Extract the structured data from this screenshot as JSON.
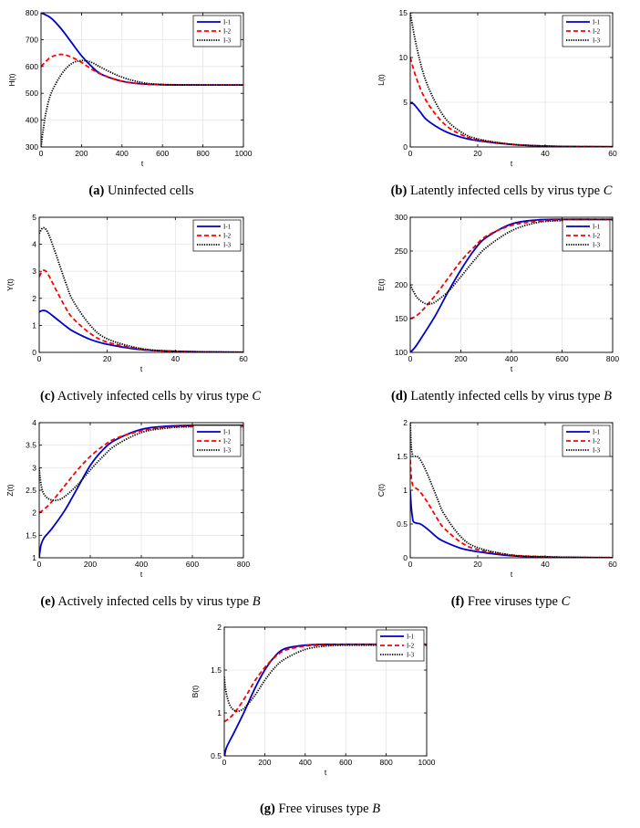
{
  "legend_labels": [
    "I-1",
    "I-2",
    "I-3"
  ],
  "colors": {
    "I-1": "#0000cc",
    "I-2": "#ff0000",
    "I-3": "#000000",
    "grid": "#e6e6e6"
  },
  "captions": {
    "a": {
      "tag": "(a)",
      "text": "Uninfected cells",
      "var": ""
    },
    "b": {
      "tag": "(b)",
      "text": "Latently infected cells by virus type",
      "var": "C"
    },
    "c": {
      "tag": "(c)",
      "text": "Actively infected cells by virus type",
      "var": "C"
    },
    "d": {
      "tag": "(d)",
      "text": "Latently infected cells by virus type",
      "var": "B"
    },
    "e": {
      "tag": "(e)",
      "text": "Actively infected cells by virus type",
      "var": "B"
    },
    "f": {
      "tag": "(f)",
      "text": "Free viruses type",
      "var": "C"
    },
    "g": {
      "tag": "(g)",
      "text": "Free viruses type",
      "var": "B"
    }
  },
  "chart_data": [
    {
      "id": "a",
      "type": "line",
      "xlabel": "t",
      "ylabel": "H(t)",
      "xlim": [
        0,
        1000
      ],
      "ylim": [
        300,
        800
      ],
      "xticks": [
        0,
        200,
        400,
        600,
        800,
        1000
      ],
      "xtick_labels": [
        "0",
        "200",
        "400",
        "600",
        "800",
        "1000"
      ],
      "yticks": [
        300,
        400,
        500,
        600,
        700,
        800
      ],
      "ytick_labels": [
        "300",
        "400",
        "500",
        "600",
        "700",
        "800"
      ],
      "legend": "top-right",
      "series": [
        {
          "name": "I-1",
          "x": [
            0,
            50,
            100,
            150,
            200,
            250,
            300,
            400,
            500,
            600,
            700,
            800,
            1000
          ],
          "y": [
            800,
            780,
            740,
            690,
            640,
            600,
            570,
            545,
            535,
            532,
            531,
            531,
            531
          ]
        },
        {
          "name": "I-2",
          "x": [
            0,
            20,
            50,
            100,
            150,
            200,
            250,
            300,
            400,
            500,
            600,
            800,
            1000
          ],
          "y": [
            600,
            615,
            635,
            645,
            635,
            615,
            590,
            570,
            545,
            535,
            532,
            531,
            531
          ]
        },
        {
          "name": "I-3",
          "x": [
            0,
            10,
            25,
            50,
            100,
            150,
            200,
            250,
            300,
            400,
            500,
            600,
            800,
            1000
          ],
          "y": [
            300,
            360,
            430,
            500,
            570,
            610,
            622,
            615,
            595,
            560,
            540,
            533,
            531,
            531
          ]
        }
      ]
    },
    {
      "id": "b",
      "type": "line",
      "xlabel": "t",
      "ylabel": "L(t)",
      "xlim": [
        0,
        60
      ],
      "ylim": [
        0,
        15
      ],
      "xticks": [
        0,
        20,
        40,
        60
      ],
      "xtick_labels": [
        "0",
        "20",
        "40",
        "60"
      ],
      "yticks": [
        0,
        5,
        10,
        15
      ],
      "ytick_labels": [
        "0",
        "5",
        "10",
        "15"
      ],
      "legend": "top-right",
      "series": [
        {
          "name": "I-1",
          "x": [
            0,
            1,
            3,
            5,
            10,
            15,
            20,
            30,
            40,
            50,
            60
          ],
          "y": [
            4.9,
            4.8,
            3.9,
            3.0,
            1.8,
            1.1,
            0.7,
            0.28,
            0.1,
            0.04,
            0.02
          ]
        },
        {
          "name": "I-2",
          "x": [
            0,
            2,
            5,
            10,
            15,
            20,
            30,
            40,
            50,
            60
          ],
          "y": [
            10,
            7.5,
            5.0,
            2.6,
            1.4,
            0.8,
            0.3,
            0.1,
            0.04,
            0.02
          ]
        },
        {
          "name": "I-3",
          "x": [
            0,
            2,
            5,
            10,
            15,
            20,
            30,
            40,
            50,
            60
          ],
          "y": [
            15,
            11,
            7.0,
            3.4,
            1.7,
            0.9,
            0.3,
            0.1,
            0.04,
            0.02
          ]
        }
      ]
    },
    {
      "id": "c",
      "type": "line",
      "xlabel": "t",
      "ylabel": "Y(t)",
      "xlim": [
        0,
        60
      ],
      "ylim": [
        0,
        5
      ],
      "xticks": [
        0,
        20,
        40,
        60
      ],
      "xtick_labels": [
        "0",
        "20",
        "40",
        "60"
      ],
      "yticks": [
        0,
        1,
        2,
        3,
        4,
        5
      ],
      "ytick_labels": [
        "0",
        "1",
        "2",
        "3",
        "4",
        "5"
      ],
      "legend": "top-right",
      "series": [
        {
          "name": "I-1",
          "x": [
            0,
            1,
            2,
            3,
            5,
            8,
            10,
            15,
            20,
            30,
            40,
            50,
            60
          ],
          "y": [
            1.5,
            1.55,
            1.53,
            1.45,
            1.25,
            0.95,
            0.78,
            0.48,
            0.3,
            0.1,
            0.04,
            0.015,
            0.005
          ]
        },
        {
          "name": "I-2",
          "x": [
            0,
            1,
            2,
            3,
            5,
            8,
            10,
            15,
            20,
            30,
            40,
            50,
            60
          ],
          "y": [
            2.8,
            3.02,
            3.0,
            2.8,
            2.3,
            1.6,
            1.25,
            0.7,
            0.38,
            0.12,
            0.04,
            0.015,
            0.005
          ]
        },
        {
          "name": "I-3",
          "x": [
            0,
            1,
            2,
            3,
            5,
            8,
            10,
            15,
            20,
            30,
            40,
            50,
            60
          ],
          "y": [
            4.4,
            4.6,
            4.55,
            4.3,
            3.6,
            2.5,
            1.9,
            1.0,
            0.5,
            0.14,
            0.04,
            0.015,
            0.005
          ]
        }
      ]
    },
    {
      "id": "d",
      "type": "line",
      "xlabel": "t",
      "ylabel": "E(t)",
      "xlim": [
        0,
        800
      ],
      "ylim": [
        100,
        300
      ],
      "xticks": [
        0,
        200,
        400,
        600,
        800
      ],
      "xtick_labels": [
        "0",
        "200",
        "400",
        "600",
        "800"
      ],
      "yticks": [
        100,
        150,
        200,
        250,
        300
      ],
      "ytick_labels": [
        "100",
        "150",
        "200",
        "250",
        "300"
      ],
      "legend": "top-right",
      "series": [
        {
          "name": "I-1",
          "x": [
            0,
            20,
            50,
            100,
            150,
            200,
            250,
            300,
            400,
            500,
            600,
            800
          ],
          "y": [
            100,
            108,
            125,
            155,
            190,
            222,
            250,
            270,
            290,
            296,
            297,
            297
          ]
        },
        {
          "name": "I-2",
          "x": [
            0,
            20,
            50,
            100,
            150,
            200,
            250,
            300,
            400,
            500,
            600,
            800
          ],
          "y": [
            150,
            153,
            163,
            185,
            210,
            235,
            255,
            272,
            288,
            294,
            296,
            297
          ]
        },
        {
          "name": "I-3",
          "x": [
            0,
            10,
            30,
            60,
            80,
            100,
            150,
            200,
            250,
            300,
            400,
            500,
            600,
            800
          ],
          "y": [
            200,
            192,
            180,
            172,
            172,
            175,
            190,
            212,
            235,
            255,
            280,
            292,
            295,
            296
          ]
        }
      ]
    },
    {
      "id": "e",
      "type": "line",
      "xlabel": "t",
      "ylabel": "Z(t)",
      "xlim": [
        0,
        800
      ],
      "ylim": [
        1,
        4
      ],
      "xticks": [
        0,
        200,
        400,
        600,
        800
      ],
      "xtick_labels": [
        "0",
        "200",
        "400",
        "600",
        "800"
      ],
      "yticks": [
        1,
        1.5,
        2,
        2.5,
        3,
        3.5,
        4
      ],
      "ytick_labels": [
        "1",
        "1.5",
        "2",
        "2.5",
        "3",
        "3.5",
        "4"
      ],
      "legend": "top-right",
      "series": [
        {
          "name": "I-1",
          "x": [
            0,
            3,
            8,
            20,
            50,
            100,
            150,
            200,
            250,
            300,
            400,
            500,
            600,
            800
          ],
          "y": [
            1,
            1.15,
            1.3,
            1.45,
            1.65,
            2.05,
            2.55,
            3.05,
            3.4,
            3.62,
            3.85,
            3.92,
            3.94,
            3.94
          ]
        },
        {
          "name": "I-2",
          "x": [
            0,
            20,
            50,
            100,
            150,
            200,
            250,
            300,
            400,
            500,
            600,
            800
          ],
          "y": [
            2,
            2.08,
            2.25,
            2.6,
            2.95,
            3.25,
            3.48,
            3.65,
            3.82,
            3.9,
            3.92,
            3.93
          ]
        },
        {
          "name": "I-3",
          "x": [
            0,
            3,
            10,
            20,
            40,
            70,
            100,
            150,
            200,
            250,
            300,
            400,
            500,
            600,
            800
          ],
          "y": [
            3,
            2.8,
            2.55,
            2.4,
            2.3,
            2.28,
            2.36,
            2.62,
            2.95,
            3.25,
            3.5,
            3.78,
            3.88,
            3.91,
            3.91
          ]
        }
      ]
    },
    {
      "id": "f",
      "type": "line",
      "xlabel": "t",
      "ylabel": "C(t)",
      "xlim": [
        0,
        60
      ],
      "ylim": [
        0,
        2
      ],
      "xticks": [
        0,
        20,
        40,
        60
      ],
      "xtick_labels": [
        "0",
        "20",
        "40",
        "60"
      ],
      "yticks": [
        0,
        0.5,
        1,
        1.5,
        2
      ],
      "ytick_labels": [
        "0",
        "0.5",
        "1",
        "1.5",
        "2"
      ],
      "legend": "top-right",
      "series": [
        {
          "name": "I-1",
          "x": [
            0,
            0.3,
            0.7,
            1,
            2,
            3,
            5,
            8,
            10,
            15,
            20,
            30,
            40,
            50,
            60
          ],
          "y": [
            1.0,
            0.75,
            0.58,
            0.53,
            0.51,
            0.5,
            0.43,
            0.3,
            0.24,
            0.14,
            0.09,
            0.03,
            0.01,
            0.005,
            0.002
          ]
        },
        {
          "name": "I-2",
          "x": [
            0,
            0.3,
            0.7,
            1,
            2,
            3,
            5,
            8,
            10,
            15,
            20,
            30,
            40,
            50,
            60
          ],
          "y": [
            1.45,
            1.2,
            1.08,
            1.05,
            1.02,
            0.97,
            0.83,
            0.58,
            0.44,
            0.23,
            0.12,
            0.04,
            0.015,
            0.005,
            0.002
          ]
        },
        {
          "name": "I-3",
          "x": [
            0,
            0.3,
            0.7,
            1,
            2,
            3,
            5,
            8,
            10,
            15,
            20,
            30,
            40,
            50,
            60
          ],
          "y": [
            2.0,
            1.65,
            1.52,
            1.5,
            1.5,
            1.45,
            1.25,
            0.88,
            0.65,
            0.31,
            0.15,
            0.04,
            0.015,
            0.005,
            0.002
          ]
        }
      ]
    },
    {
      "id": "g",
      "type": "line",
      "xlabel": "t",
      "ylabel": "B(t)",
      "xlim": [
        0,
        1000
      ],
      "ylim": [
        0.5,
        2
      ],
      "xticks": [
        0,
        200,
        400,
        600,
        800,
        1000
      ],
      "xtick_labels": [
        "0",
        "200",
        "400",
        "600",
        "800",
        "1000"
      ],
      "yticks": [
        0.5,
        1,
        1.5,
        2
      ],
      "ytick_labels": [
        "0.5",
        "1",
        "1.5",
        "2"
      ],
      "legend": "top-right",
      "series": [
        {
          "name": "I-1",
          "x": [
            0,
            5,
            15,
            50,
            100,
            150,
            200,
            250,
            300,
            400,
            500,
            600,
            800,
            1000
          ],
          "y": [
            0.45,
            0.55,
            0.62,
            0.78,
            1.02,
            1.28,
            1.5,
            1.66,
            1.75,
            1.79,
            1.8,
            1.8,
            1.8,
            1.8
          ]
        },
        {
          "name": "I-2",
          "x": [
            0,
            20,
            50,
            100,
            150,
            200,
            250,
            300,
            400,
            500,
            600,
            800,
            1000
          ],
          "y": [
            0.9,
            0.93,
            1.0,
            1.17,
            1.37,
            1.53,
            1.65,
            1.73,
            1.78,
            1.79,
            1.8,
            1.8,
            1.8
          ]
        },
        {
          "name": "I-3",
          "x": [
            0,
            5,
            15,
            30,
            50,
            70,
            100,
            150,
            200,
            250,
            300,
            400,
            500,
            600,
            800,
            1000
          ],
          "y": [
            1.42,
            1.3,
            1.18,
            1.08,
            1.03,
            1.02,
            1.06,
            1.2,
            1.38,
            1.53,
            1.63,
            1.74,
            1.78,
            1.79,
            1.79,
            1.79
          ]
        }
      ]
    }
  ]
}
